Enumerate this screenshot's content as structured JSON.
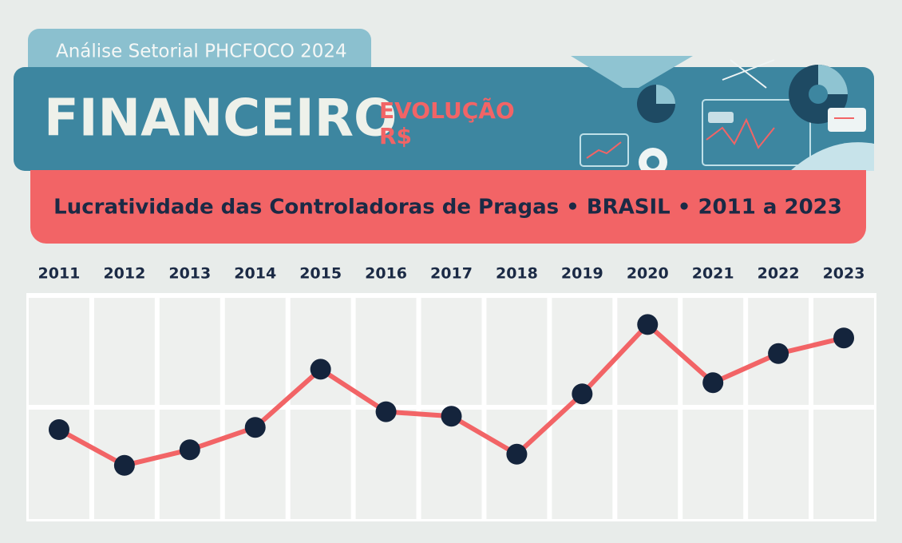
{
  "header": {
    "tab": "Análise Setorial PHCFOCO 2024",
    "title": "FINANCEIRO",
    "tag_line1": "EVOLUÇÃO",
    "tag_line2": "R$"
  },
  "chart_data": {
    "type": "line",
    "title": "Lucratividade das Controladoras de Pragas • BRASIL • 2011 a 2023",
    "categories": [
      "2011",
      "2012",
      "2013",
      "2014",
      "2015",
      "2016",
      "2017",
      "2018",
      "2019",
      "2020",
      "2021",
      "2022",
      "2023"
    ],
    "values": [
      40,
      24,
      31,
      41,
      67,
      48,
      46,
      29,
      56,
      87,
      61,
      74,
      81
    ],
    "color": "#f26466",
    "marker_color": "#14243c",
    "ylim": [
      0,
      100
    ]
  }
}
